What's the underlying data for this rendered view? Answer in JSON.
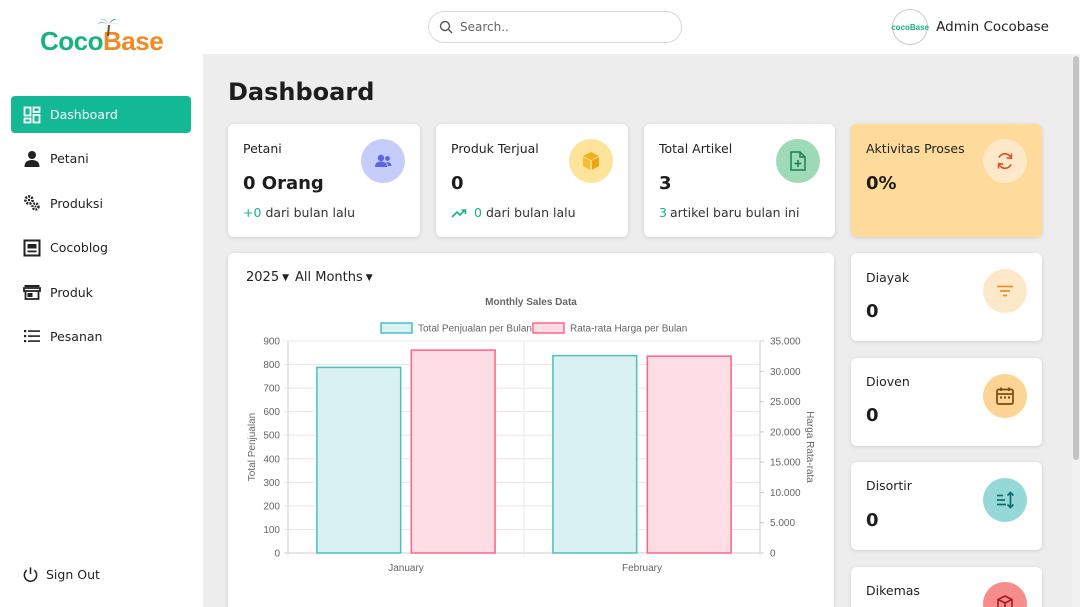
{
  "app": {
    "logo_part1": "Coco",
    "logo_part2": "Base"
  },
  "sidebar": {
    "items": [
      {
        "label": "Dashboard",
        "icon": "dashboard-icon",
        "active": true
      },
      {
        "label": "Petani",
        "icon": "person-icon",
        "active": false
      },
      {
        "label": "Produksi",
        "icon": "gears-icon",
        "active": false
      },
      {
        "label": "Cocoblog",
        "icon": "article-icon",
        "active": false
      },
      {
        "label": "Produk",
        "icon": "store-icon",
        "active": false
      },
      {
        "label": "Pesanan",
        "icon": "list-icon",
        "active": false
      }
    ],
    "signout_label": "Sign Out"
  },
  "header": {
    "search_placeholder": "Search..",
    "user_name": "Admin Cocobase",
    "avatar_text": "cocoBase"
  },
  "page": {
    "title": "Dashboard"
  },
  "stats": [
    {
      "label": "Petani",
      "value": "0 Orang",
      "sub_highlight": "+0",
      "sub_text": "dari bulan lalu",
      "icon": "farmers-icon"
    },
    {
      "label": "Produk Terjual",
      "value": "0",
      "sub_highlight": "0",
      "sub_text": "dari bulan lalu",
      "icon": "box-icon"
    },
    {
      "label": "Total Artikel",
      "value": "3",
      "sub_highlight": "3",
      "sub_text": "artikel baru bulan ini",
      "icon": "add-document-icon"
    },
    {
      "label": "Aktivitas Proses",
      "value": "0%",
      "icon": "refresh-icon"
    }
  ],
  "process": [
    {
      "label": "Diayak",
      "value": "0",
      "icon": "filter-icon"
    },
    {
      "label": "Dioven",
      "value": "0",
      "icon": "calendar-icon"
    },
    {
      "label": "Disortir",
      "value": "0",
      "icon": "sort-icon"
    },
    {
      "label": "Dikemas",
      "value": "",
      "icon": "package-icon"
    }
  ],
  "filters": {
    "year": "2025",
    "month": "All Months"
  },
  "colors": {
    "accent": "#13b894",
    "highlight_card": "#fedb9b",
    "series1_fill": "#d9f1f1",
    "series1_stroke": "#4bc0c0",
    "series2_fill": "#ffdde4",
    "series2_stroke": "#ff6384"
  },
  "chart_data": {
    "type": "bar",
    "title": "Monthly Sales Data",
    "categories": [
      "January",
      "February"
    ],
    "series": [
      {
        "name": "Total Penjualan per Bulan",
        "axis": "left",
        "values": [
          788,
          838
        ]
      },
      {
        "name": "Rata-rata Harga per Bulan",
        "axis": "right",
        "values": [
          33500,
          32500
        ]
      }
    ],
    "ylabel": "Total Penjualan",
    "y2label": "Harga Rata-rata",
    "ylim": [
      0,
      900
    ],
    "y2lim": [
      0,
      35000
    ],
    "yticks": [
      "0",
      "100",
      "200",
      "300",
      "400",
      "500",
      "600",
      "700",
      "800",
      "900"
    ],
    "y2ticks": [
      "0",
      "5.000",
      "10.000",
      "15.000",
      "20.000",
      "25.000",
      "30.000",
      "35.000"
    ],
    "grid": true,
    "legend_position": "top"
  }
}
